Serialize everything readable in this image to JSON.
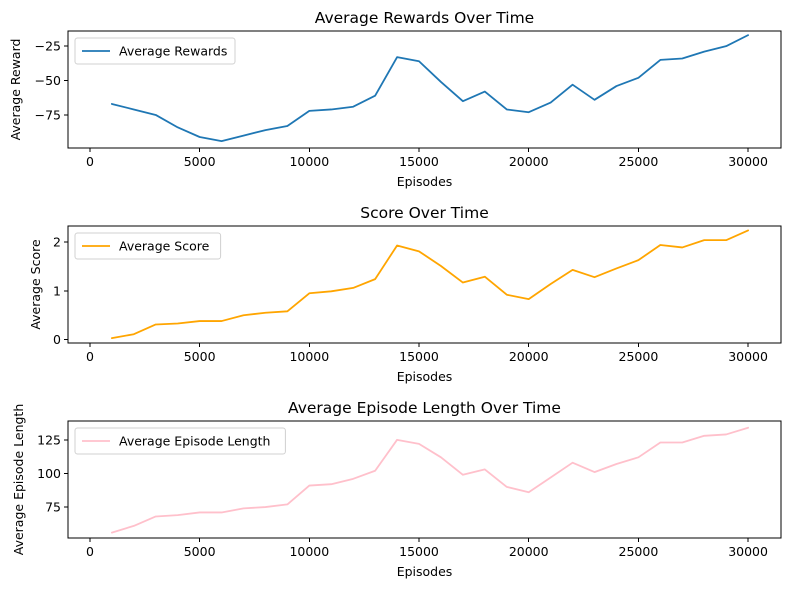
{
  "chart_data": [
    {
      "type": "line",
      "title": "Average Rewards Over Time",
      "xlabel": "Episodes",
      "ylabel": "Average Reward",
      "xlim": [
        -1000,
        31500
      ],
      "ylim": [
        -99,
        -14
      ],
      "xticks": [
        0,
        5000,
        10000,
        15000,
        20000,
        25000,
        30000
      ],
      "yticks": [
        -75,
        -50,
        -25
      ],
      "legend": "top-left",
      "x": [
        1000,
        2000,
        3000,
        4000,
        5000,
        6000,
        7000,
        8000,
        9000,
        10000,
        11000,
        12000,
        13000,
        14000,
        15000,
        16000,
        17000,
        18000,
        19000,
        20000,
        21000,
        22000,
        23000,
        24000,
        25000,
        26000,
        27000,
        28000,
        29000,
        30000
      ],
      "series": [
        {
          "name": "Average Rewards",
          "color": "#1f77b4",
          "values": [
            -67,
            -71,
            -75,
            -84,
            -91,
            -94,
            -90,
            -86,
            -83,
            -72,
            -71,
            -69,
            -61,
            -33,
            -36,
            -51,
            -65,
            -58,
            -71,
            -73,
            -66,
            -53,
            -64,
            -54,
            -48,
            -35,
            -34,
            -29,
            -25,
            -17
          ]
        }
      ]
    },
    {
      "type": "line",
      "title": "Score Over Time",
      "xlabel": "Episodes",
      "ylabel": "Average Score",
      "xlim": [
        -1000,
        31500
      ],
      "ylim": [
        -0.07,
        2.33
      ],
      "xticks": [
        0,
        5000,
        10000,
        15000,
        20000,
        25000,
        30000
      ],
      "yticks": [
        0,
        1,
        2
      ],
      "legend": "top-left",
      "x": [
        1000,
        2000,
        3000,
        4000,
        5000,
        6000,
        7000,
        8000,
        9000,
        10000,
        11000,
        12000,
        13000,
        14000,
        15000,
        16000,
        17000,
        18000,
        19000,
        20000,
        21000,
        22000,
        23000,
        24000,
        25000,
        26000,
        27000,
        28000,
        29000,
        30000
      ],
      "series": [
        {
          "name": "Average Score",
          "color": "#ffa500",
          "values": [
            0.03,
            0.11,
            0.31,
            0.33,
            0.38,
            0.38,
            0.5,
            0.55,
            0.58,
            0.95,
            0.99,
            1.06,
            1.24,
            1.93,
            1.81,
            1.51,
            1.17,
            1.29,
            0.92,
            0.83,
            1.14,
            1.43,
            1.28,
            1.46,
            1.63,
            1.94,
            1.89,
            2.04,
            2.04,
            2.24
          ]
        }
      ]
    },
    {
      "type": "line",
      "title": "Average Episode Length Over Time",
      "xlabel": "Episodes",
      "ylabel": "Average Episode Length",
      "xlim": [
        -1000,
        31500
      ],
      "ylim": [
        52,
        139
      ],
      "xticks": [
        0,
        5000,
        10000,
        15000,
        20000,
        25000,
        30000
      ],
      "yticks": [
        75,
        100,
        125
      ],
      "legend": "top-left",
      "x": [
        1000,
        2000,
        3000,
        4000,
        5000,
        6000,
        7000,
        8000,
        9000,
        10000,
        11000,
        12000,
        13000,
        14000,
        15000,
        16000,
        17000,
        18000,
        19000,
        20000,
        21000,
        22000,
        23000,
        24000,
        25000,
        26000,
        27000,
        28000,
        29000,
        30000
      ],
      "series": [
        {
          "name": "Average Episode Length",
          "color": "#ffc0cb",
          "values": [
            56,
            61,
            68,
            69,
            71,
            71,
            74,
            75,
            77,
            91,
            92,
            96,
            102,
            125,
            122,
            112,
            99,
            103,
            90,
            86,
            97,
            108,
            101,
            107,
            112,
            123,
            123,
            128,
            129,
            134
          ]
        }
      ]
    }
  ]
}
